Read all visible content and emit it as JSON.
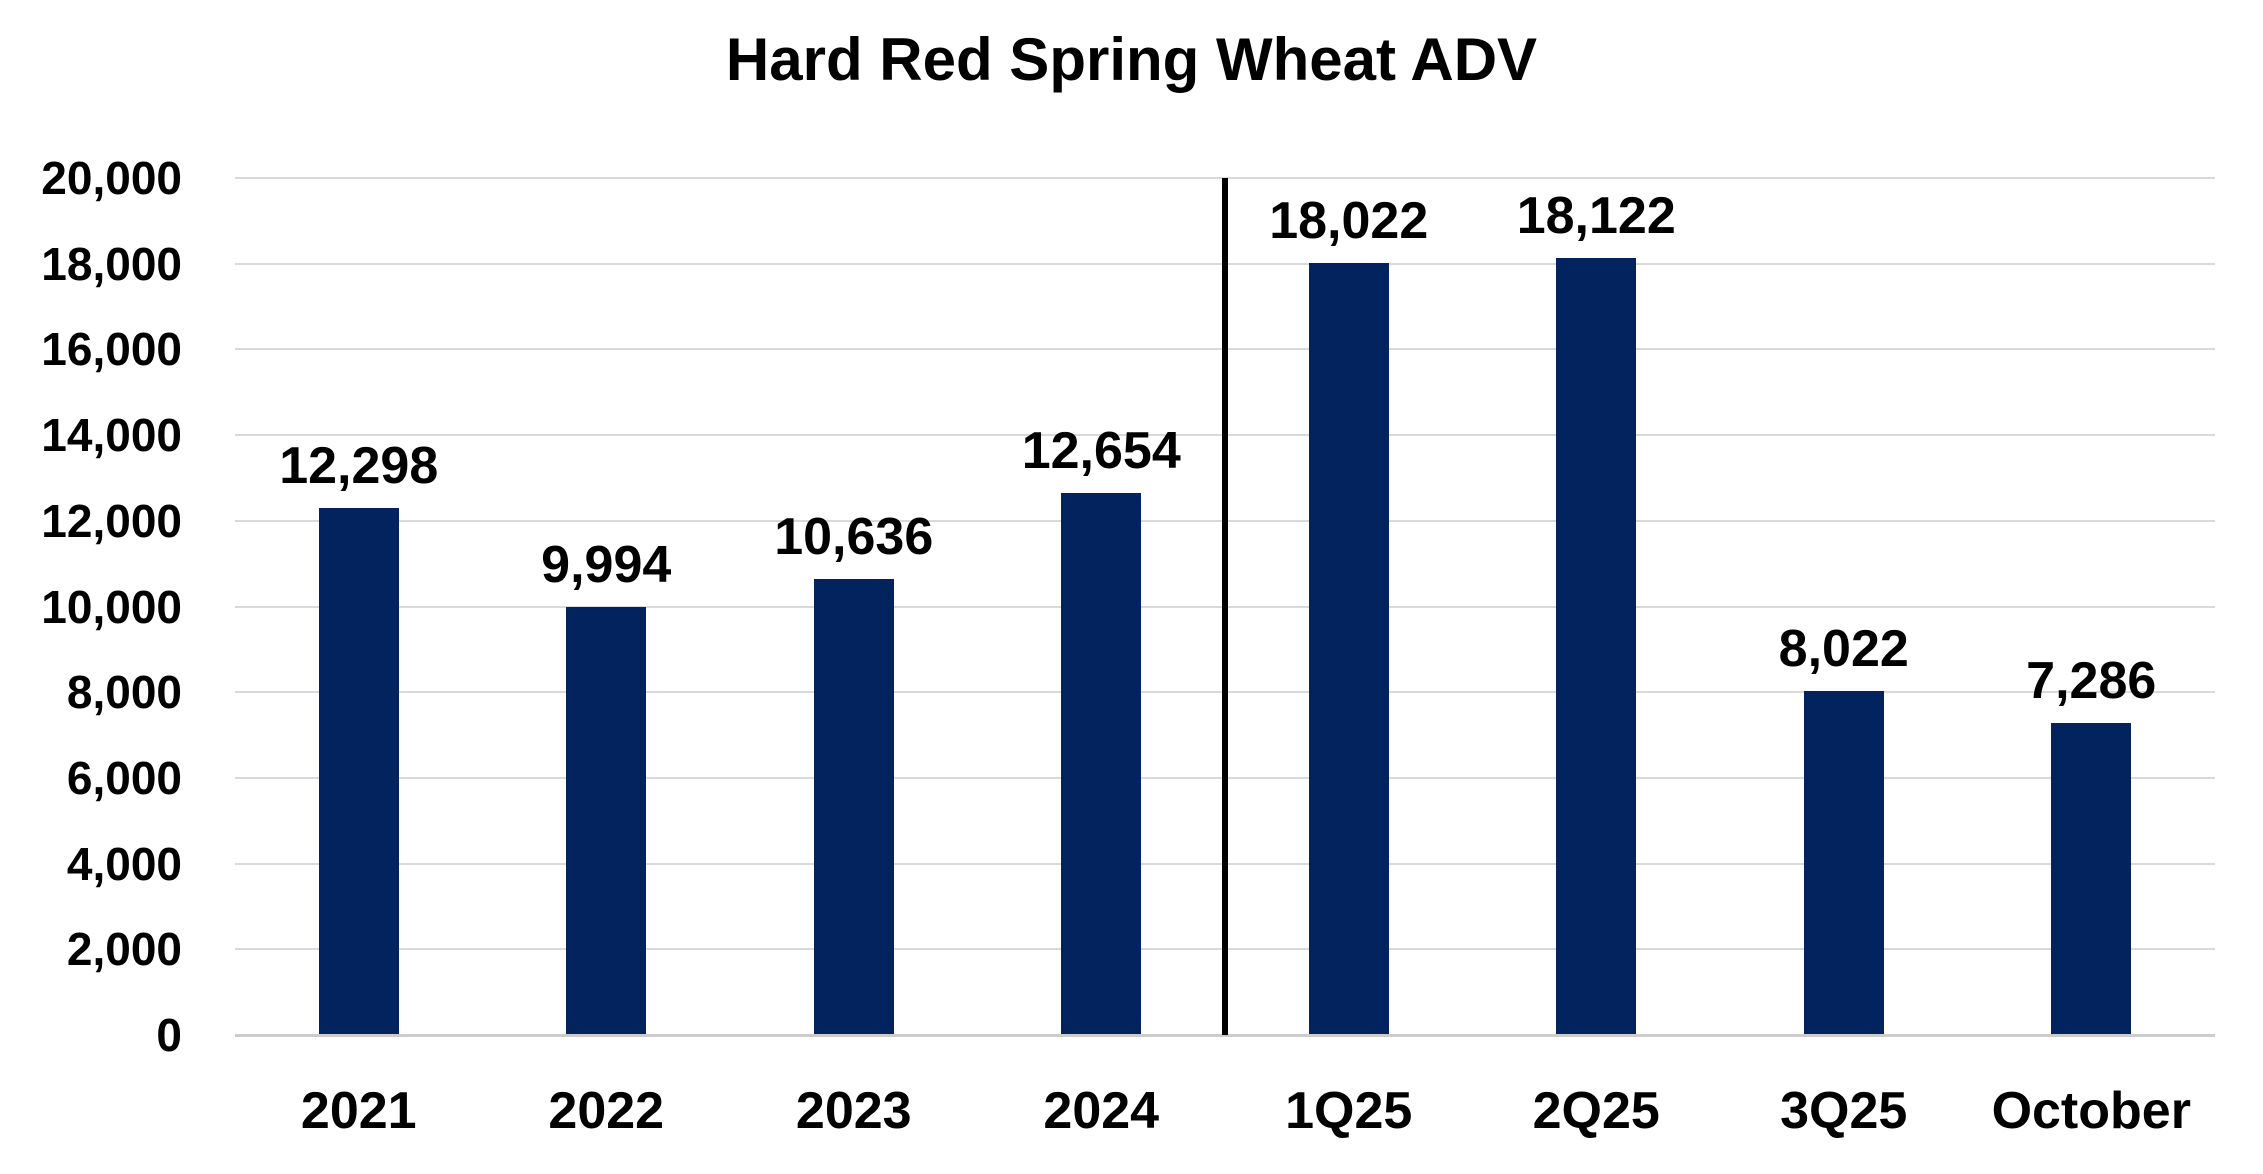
{
  "chart_data": {
    "type": "bar",
    "title": "Hard Red Spring Wheat ADV",
    "categories": [
      "2021",
      "2022",
      "2023",
      "2024",
      "1Q25",
      "2Q25",
      "3Q25",
      "October"
    ],
    "values": [
      12298,
      9994,
      10636,
      12654,
      18022,
      18122,
      8022,
      7286
    ],
    "data_labels": [
      "12,298",
      "9,994",
      "10,636",
      "12,654",
      "18,022",
      "18,122",
      "8,022",
      "7,286"
    ],
    "y_ticks": [
      "0",
      "2,000",
      "4,000",
      "6,000",
      "8,000",
      "10,000",
      "12,000",
      "14,000",
      "16,000",
      "18,000",
      "20,000"
    ],
    "y_tick_step": 2000,
    "ylim": [
      0,
      20000
    ],
    "xlabel": "",
    "ylabel": "",
    "grid": "horizontal",
    "legend": "none",
    "separator_after_category": "2024",
    "separator_after_index": 3,
    "colors": {
      "bar": "#03235F",
      "gridline": "#D9D9D9",
      "axis_line": "#CCCCCC",
      "separator": "#000000",
      "text": "#000000",
      "background": "#FFFFFF"
    }
  }
}
